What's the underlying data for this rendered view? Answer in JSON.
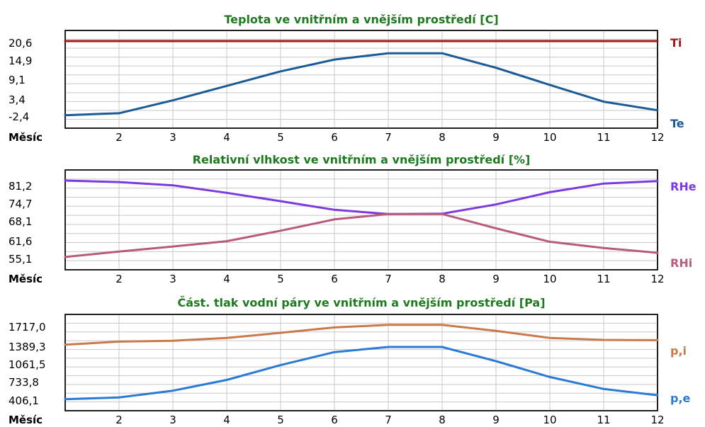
{
  "chart_data": [
    {
      "type": "line",
      "title": "Teplota ve vnitřním a vnějším prostředí [C]",
      "xlabel": "Měsíc",
      "x": [
        1,
        2,
        3,
        4,
        5,
        6,
        7,
        8,
        9,
        10,
        11,
        12
      ],
      "x_tick_labels": [
        "2",
        "3",
        "4",
        "5",
        "6",
        "7",
        "8",
        "9",
        "10",
        "11",
        "12"
      ],
      "y_tick_labels": [
        "20,6",
        "14,9",
        "9,1",
        "3,4",
        "-2,4"
      ],
      "ylim": [
        -2.4,
        20.6
      ],
      "grid": true,
      "series": [
        {
          "name": "Ti",
          "color": "#a01818",
          "values": [
            20.6,
            20.6,
            20.6,
            20.6,
            20.6,
            20.6,
            20.6,
            20.6,
            20.6,
            20.6,
            20.6,
            20.6
          ]
        },
        {
          "name": "Te",
          "color": "#1a5a96",
          "values": [
            -1.9,
            -1.3,
            2.6,
            7.0,
            11.4,
            15.0,
            16.9,
            16.9,
            12.5,
            7.3,
            2.2,
            -0.4
          ]
        }
      ]
    },
    {
      "type": "line",
      "title": "Relativní vlhkost ve vnitřním a vnějším prostředí [%]",
      "xlabel": "Měsíc",
      "x": [
        1,
        2,
        3,
        4,
        5,
        6,
        7,
        8,
        9,
        10,
        11,
        12
      ],
      "x_tick_labels": [
        "2",
        "3",
        "4",
        "5",
        "6",
        "7",
        "8",
        "9",
        "10",
        "11",
        "12"
      ],
      "y_tick_labels": [
        "81,2",
        "74,7",
        "68,1",
        "61,6",
        "55,1"
      ],
      "ylim": [
        55.1,
        81.2
      ],
      "grid": true,
      "series": [
        {
          "name": "RHe",
          "color": "#7a3ae0",
          "values": [
            81.2,
            80.7,
            79.6,
            77.1,
            74.3,
            71.4,
            70.0,
            70.1,
            73.2,
            77.3,
            80.2,
            81.0
          ]
        },
        {
          "name": "RHi",
          "color": "#b85a78",
          "values": [
            55.6,
            57.4,
            59.1,
            60.9,
            64.4,
            68.2,
            70.0,
            70.0,
            65.2,
            60.7,
            58.6,
            57.0
          ]
        }
      ]
    },
    {
      "type": "line",
      "title": "Část. tlak vodní páry ve vnitřním a vnějším prostředí [Pa]",
      "xlabel": "Měsíc",
      "x": [
        1,
        2,
        3,
        4,
        5,
        6,
        7,
        8,
        9,
        10,
        11,
        12
      ],
      "x_tick_labels": [
        "2",
        "3",
        "4",
        "5",
        "6",
        "7",
        "8",
        "9",
        "10",
        "11",
        "12"
      ],
      "y_tick_labels": [
        "1717,0",
        "1389,3",
        "1061,5",
        "733,8",
        "406,1"
      ],
      "ylim": [
        406.1,
        1717.0
      ],
      "grid": true,
      "series": [
        {
          "name": "p,i",
          "color": "#c87a4a",
          "values": [
            1370,
            1425,
            1440,
            1490,
            1580,
            1675,
            1720,
            1720,
            1615,
            1490,
            1455,
            1450
          ]
        },
        {
          "name": "p,e",
          "color": "#2a7ad6",
          "values": [
            410,
            440,
            560,
            750,
            1010,
            1240,
            1330,
            1330,
            1080,
            800,
            590,
            480
          ]
        }
      ]
    }
  ]
}
